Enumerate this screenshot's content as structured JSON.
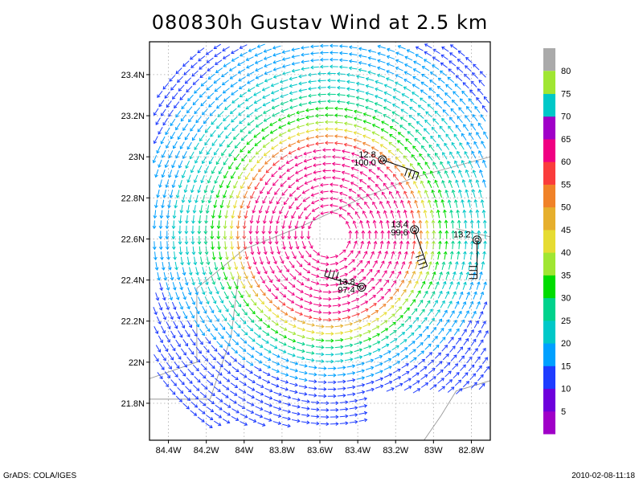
{
  "title": "080830h Gustav Wind at 2.5 km",
  "footer": {
    "left": "GrADS: COLA/IGES",
    "right": "2010-02-08-11:18"
  },
  "chart_data": {
    "type": "vector-wind-map",
    "x_ticks": [
      {
        "value": -84.4,
        "label": "84.4W"
      },
      {
        "value": -84.2,
        "label": "84.2W"
      },
      {
        "value": -84.0,
        "label": "84W"
      },
      {
        "value": -83.8,
        "label": "83.8W"
      },
      {
        "value": -83.6,
        "label": "83.6W"
      },
      {
        "value": -83.4,
        "label": "83.4W"
      },
      {
        "value": -83.2,
        "label": "83.2W"
      },
      {
        "value": -83.0,
        "label": "83W"
      },
      {
        "value": -82.8,
        "label": "82.8W"
      }
    ],
    "y_ticks": [
      {
        "value": 21.8,
        "label": "21.8N"
      },
      {
        "value": 22.0,
        "label": "22N"
      },
      {
        "value": 22.2,
        "label": "22.2N"
      },
      {
        "value": 22.4,
        "label": "22.4N"
      },
      {
        "value": 22.6,
        "label": "22.6N"
      },
      {
        "value": 22.8,
        "label": "22.8N"
      },
      {
        "value": 23.0,
        "label": "23N"
      },
      {
        "value": 23.2,
        "label": "23.2N"
      },
      {
        "value": 23.4,
        "label": "23.4N"
      }
    ],
    "xlim": [
      -84.5,
      -82.7
    ],
    "ylim": [
      21.62,
      23.56
    ],
    "grid": true,
    "vortex_center": {
      "lon": -83.55,
      "lat": 22.62
    },
    "colorbar": {
      "labels": [
        "5",
        "10",
        "15",
        "20",
        "25",
        "30",
        "35",
        "40",
        "45",
        "50",
        "55",
        "60",
        "65",
        "70",
        "75",
        "80"
      ],
      "colors": [
        "#a000c8",
        "#6e00dc",
        "#1e3cff",
        "#00a0ff",
        "#00c8c8",
        "#00d28c",
        "#00dc00",
        "#a0e632",
        "#e6dc32",
        "#e6af2d",
        "#f08228",
        "#fa3c3c",
        "#f00082",
        "#a000c8",
        "#00c8c8",
        "#a0e632"
      ],
      "top_color": "#aaaaaa"
    },
    "stations": [
      {
        "lon": -83.27,
        "lat": 22.985,
        "labels": [
          "12.8",
          "100.0"
        ]
      },
      {
        "lon": -83.1,
        "lat": 22.645,
        "labels": [
          "13.4",
          "99.6"
        ]
      },
      {
        "lon": -82.77,
        "lat": 22.595,
        "labels": [
          "13.2"
        ]
      },
      {
        "lon": -83.38,
        "lat": 22.365,
        "labels": [
          "13.8",
          "97.4"
        ]
      }
    ]
  }
}
